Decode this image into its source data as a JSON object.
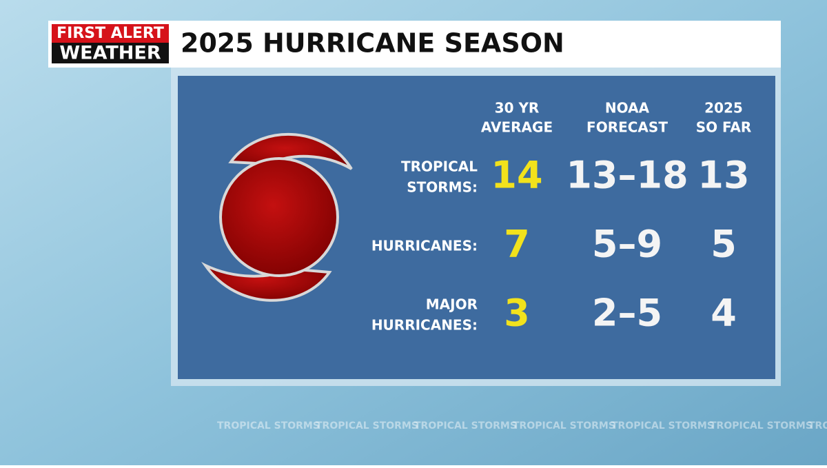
{
  "logo": {
    "top": "FIRST ALERT",
    "bottom": "WEATHER"
  },
  "title": "2025 HURRICANE SEASON",
  "table": {
    "headers": [
      [
        "30 YR",
        "AVERAGE"
      ],
      [
        "NOAA",
        "FORECAST"
      ],
      [
        "2025",
        "SO FAR"
      ]
    ],
    "rows": [
      {
        "label": [
          [
            "TROPICAL",
            "STORMS:"
          ]
        ],
        "cells": [
          14,
          "13–18",
          13
        ]
      },
      {
        "label": [
          [
            "HURRICANES:"
          ]
        ],
        "cells": [
          7,
          "5–9",
          5
        ]
      },
      {
        "label": [
          [
            "MAJOR",
            "HURRICANES:"
          ]
        ],
        "cells": [
          3,
          "2–5",
          4
        ]
      }
    ]
  },
  "ticker": "TROPICAL STORMS"
}
